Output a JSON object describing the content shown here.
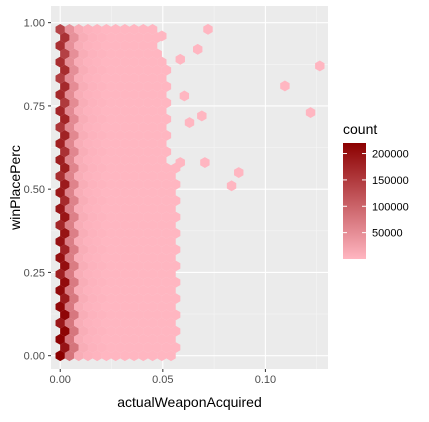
{
  "chart_data": {
    "type": "hexbin",
    "xlabel": "actualWeaponAcquired",
    "ylabel": "winPlacePerc",
    "xlim": [
      -0.0045,
      0.1305
    ],
    "ylim": [
      -0.04,
      1.05
    ],
    "x_ticks": [
      {
        "value": 0.0,
        "label": "0.00"
      },
      {
        "value": 0.05,
        "label": "0.05"
      },
      {
        "value": 0.1,
        "label": "0.10"
      }
    ],
    "y_ticks": [
      {
        "value": 0.0,
        "label": "0.00"
      },
      {
        "value": 0.25,
        "label": "0.25"
      },
      {
        "value": 0.5,
        "label": "0.50"
      },
      {
        "value": 0.75,
        "label": "0.75"
      },
      {
        "value": 1.0,
        "label": "1.00"
      }
    ],
    "grid": true,
    "legend": {
      "title": "count",
      "position": "right",
      "low_color": "#ffb6c1",
      "high_color": "#8b0000",
      "range": [
        1,
        220000
      ],
      "labels": [
        {
          "value": 50000,
          "label": "50000"
        },
        {
          "value": 100000,
          "label": "100000"
        },
        {
          "value": 150000,
          "label": "150000"
        },
        {
          "value": 200000,
          "label": "200000"
        }
      ]
    },
    "bin_width": 0.0045,
    "columns": [
      {
        "x": 0.0,
        "y_min": 0.0,
        "y_max": 1.0,
        "intensity": 0.95
      },
      {
        "x": 0.0045,
        "y_min": 0.0,
        "y_max": 1.0,
        "intensity": 0.28
      },
      {
        "x": 0.009,
        "y_min": 0.0,
        "y_max": 1.0,
        "intensity": 0.05
      },
      {
        "x": 0.0135,
        "y_min": 0.0,
        "y_max": 1.0,
        "intensity": 0.02
      },
      {
        "x": 0.018,
        "y_min": 0.0,
        "y_max": 1.0,
        "intensity": 0.01
      },
      {
        "x": 0.0225,
        "y_min": 0.0,
        "y_max": 1.0,
        "intensity": 0.0
      },
      {
        "x": 0.027,
        "y_min": 0.0,
        "y_max": 1.0,
        "intensity": 0.0
      },
      {
        "x": 0.0315,
        "y_min": 0.0,
        "y_max": 1.0,
        "intensity": 0.0
      },
      {
        "x": 0.036,
        "y_min": 0.0,
        "y_max": 0.99,
        "intensity": 0.0
      },
      {
        "x": 0.0405,
        "y_min": 0.0,
        "y_max": 0.99,
        "intensity": 0.0
      },
      {
        "x": 0.045,
        "y_min": 0.0,
        "y_max": 0.99,
        "intensity": 0.0
      },
      {
        "x": 0.0495,
        "y_min": 0.0,
        "y_max": 0.9,
        "intensity": 0.0
      },
      {
        "x": 0.054,
        "y_min": 0.0,
        "y_max": 0.58,
        "intensity": 0.0
      }
    ],
    "outliers": [
      {
        "x": 0.0495,
        "y": 0.96
      },
      {
        "x": 0.0585,
        "y": 0.89
      },
      {
        "x": 0.0585,
        "y": 0.58
      },
      {
        "x": 0.0605,
        "y": 0.78
      },
      {
        "x": 0.063,
        "y": 0.7
      },
      {
        "x": 0.067,
        "y": 0.92
      },
      {
        "x": 0.069,
        "y": 0.72
      },
      {
        "x": 0.0705,
        "y": 0.58
      },
      {
        "x": 0.072,
        "y": 0.98
      },
      {
        "x": 0.0835,
        "y": 0.51
      },
      {
        "x": 0.087,
        "y": 0.55
      },
      {
        "x": 0.1095,
        "y": 0.81
      },
      {
        "x": 0.122,
        "y": 0.73
      },
      {
        "x": 0.1265,
        "y": 0.87
      }
    ]
  }
}
